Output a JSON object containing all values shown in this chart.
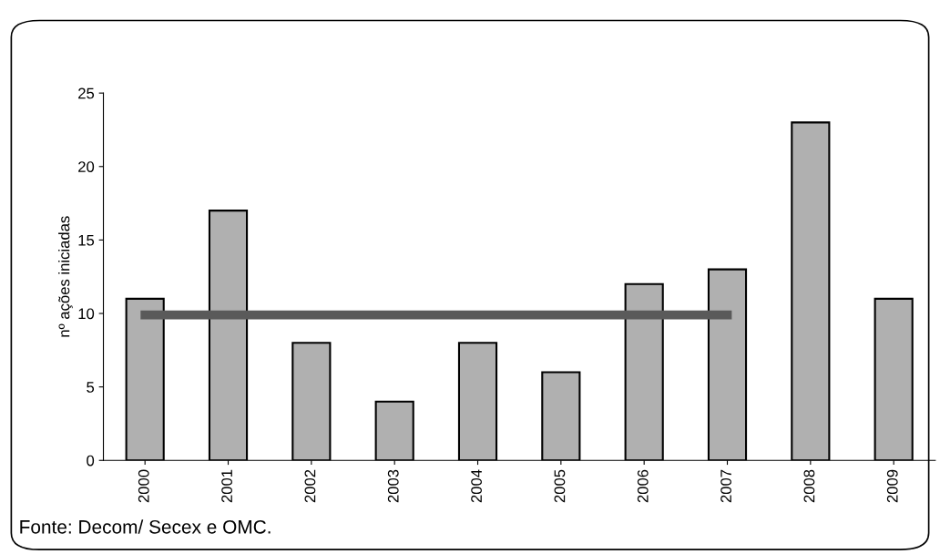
{
  "chart_data": {
    "type": "bar",
    "ylabel": "nº ações iniciadas",
    "categories": [
      "2000",
      "2001",
      "2002",
      "2003",
      "2004",
      "2005",
      "2006",
      "2007",
      "2008",
      "2009"
    ],
    "series": [
      {
        "color": "#b0b0b0",
        "values": [
          11,
          17,
          8,
          4,
          8,
          6,
          12,
          13,
          23,
          11
        ]
      },
      {
        "type": "line",
        "color": "#5a5a5a",
        "values": [
          9.9,
          9.9,
          9.9,
          9.9,
          9.9,
          9.9,
          9.9,
          9.9,
          null,
          null
        ]
      }
    ],
    "ylim": [
      0,
      25
    ],
    "yticks": [
      0,
      5,
      10,
      15,
      20,
      25
    ],
    "grid": false,
    "legend": false,
    "marker": "none",
    "annotations": [
      "Fonte: Decom/ Secex e OMC."
    ]
  }
}
